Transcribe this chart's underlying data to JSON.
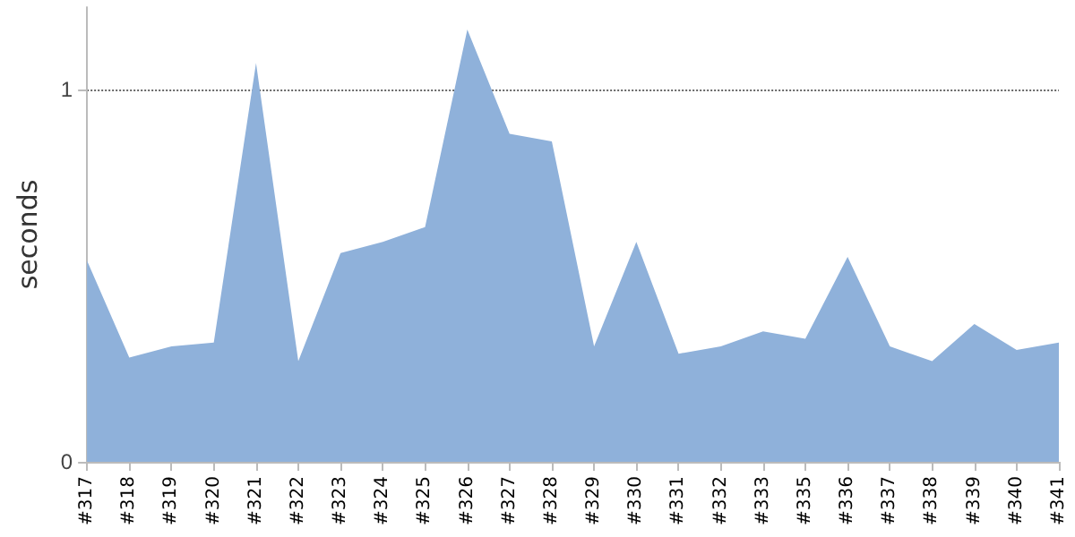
{
  "chart_data": {
    "type": "area",
    "ylabel": "seconds",
    "categories": [
      "#317",
      "#318",
      "#319",
      "#320",
      "#321",
      "#322",
      "#323",
      "#324",
      "#325",
      "#326",
      "#327",
      "#328",
      "#329",
      "#330",
      "#331",
      "#332",
      "#333",
      "#335",
      "#336",
      "#337",
      "#338",
      "#339",
      "#340",
      "#341"
    ],
    "series": [
      {
        "color": "#8fb1da",
        "values": [
          0.54,
          0.28,
          0.31,
          0.32,
          1.07,
          0.27,
          0.56,
          0.59,
          0.63,
          1.16,
          0.88,
          0.86,
          0.31,
          0.59,
          0.29,
          0.31,
          0.35,
          0.33,
          0.55,
          0.31,
          0.27,
          0.37,
          0.3,
          0.32
        ]
      }
    ],
    "ylim": [
      0,
      1.22
    ],
    "yticks": [
      0,
      1
    ],
    "grid": "y",
    "marker": "none"
  }
}
